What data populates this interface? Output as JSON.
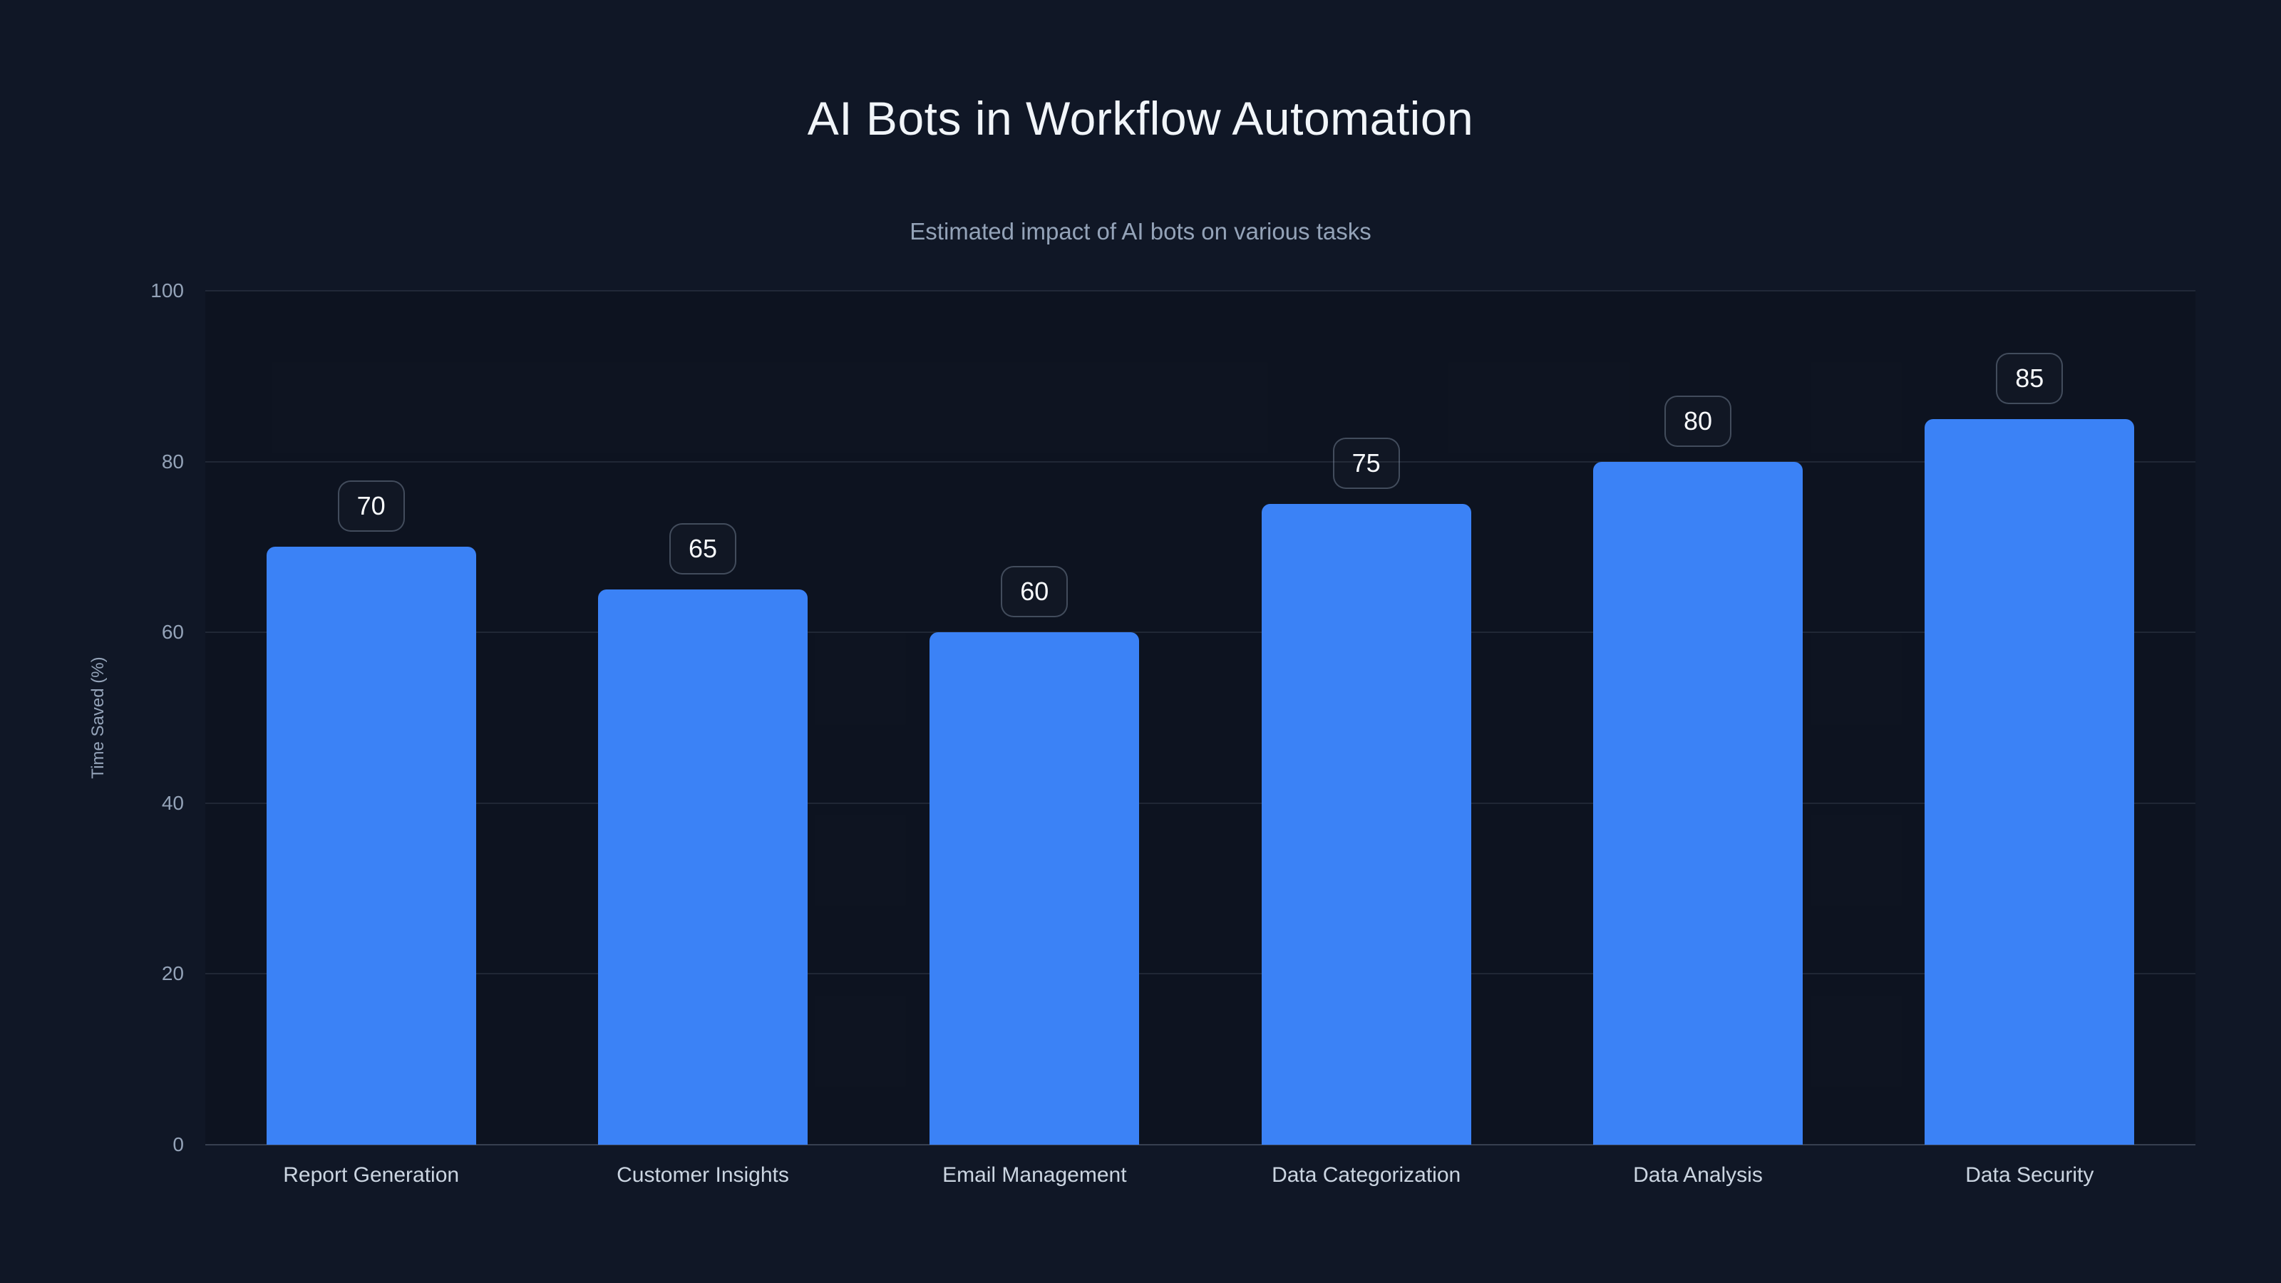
{
  "header": {
    "title": "AI Bots in Workflow Automation",
    "subtitle": "Estimated impact of AI bots on various tasks"
  },
  "chart_data": {
    "type": "bar",
    "title": "AI Bots in Workflow Automation",
    "subtitle": "Estimated impact of AI bots on various tasks",
    "categories": [
      "Report Generation",
      "Customer Insights",
      "Email Management",
      "Data Categorization",
      "Data Analysis",
      "Data Security"
    ],
    "values": [
      70,
      65,
      60,
      75,
      80,
      85
    ],
    "xlabel": "",
    "ylabel": "Time Saved (%)",
    "ylim": [
      0,
      100
    ],
    "yticks": [
      0,
      20,
      40,
      60,
      80,
      100
    ],
    "grid": "horizontal gridlines on",
    "legend": "none",
    "value_labels": "boxed numbers above each bar",
    "bar_color": "#3b82f6",
    "background_color": "#101726",
    "title_color": "#f1f5f9",
    "subtitle_color": "#94a3b8",
    "tick_color": "#94a3b8",
    "category_label_color": "#cbd5e1",
    "badge_border_color": "#4a5468",
    "badge_text_color": "#f8fafc"
  }
}
